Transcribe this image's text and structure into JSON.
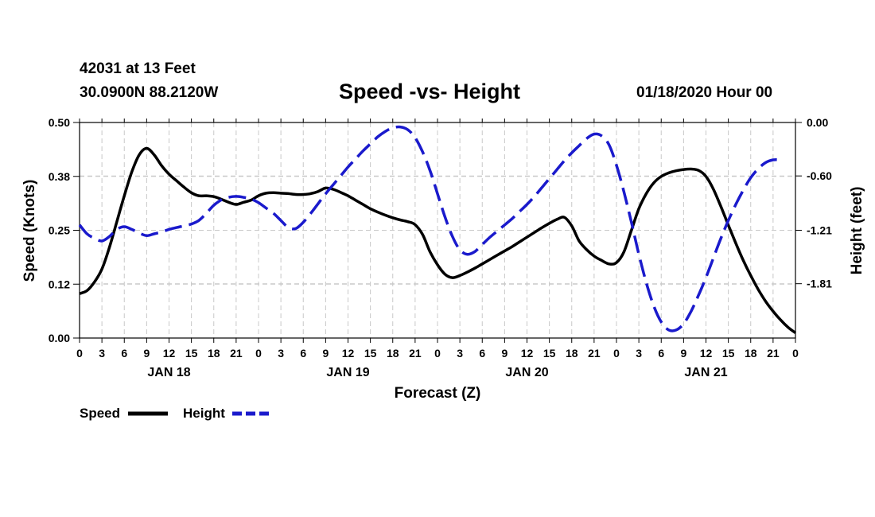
{
  "header": {
    "station": "42031 at 13 Feet",
    "coords": "30.0900N 88.2120W",
    "title": "Speed -vs- Height",
    "datetime": "01/18/2020 Hour 00"
  },
  "colors": {
    "speed": "#000000",
    "height": "#1a1acc",
    "grid": "#c8c8c8"
  },
  "chart_data": {
    "type": "line",
    "title": "Speed -vs- Height",
    "xlabel": "Forecast (Z)",
    "ylabel": "Speed (Knots)",
    "ylabel_right": "Height (feet)",
    "x_hours_range": [
      0,
      96
    ],
    "x_tick_labels": [
      "0",
      "3",
      "6",
      "9",
      "12",
      "15",
      "18",
      "21",
      "0",
      "3",
      "6",
      "9",
      "12",
      "15",
      "18",
      "21",
      "0",
      "3",
      "6",
      "9",
      "12",
      "15",
      "18",
      "21",
      "0",
      "3",
      "6",
      "9",
      "12",
      "15",
      "18",
      "21",
      "0"
    ],
    "day_labels": [
      {
        "label": "JAN 18",
        "hour": 12
      },
      {
        "label": "JAN 19",
        "hour": 36
      },
      {
        "label": "JAN 20",
        "hour": 60
      },
      {
        "label": "JAN 21",
        "hour": 84
      }
    ],
    "ylim": [
      0,
      0.5
    ],
    "y_tick_labels": [
      "0.00",
      "0.12",
      "0.25",
      "0.38",
      "0.50"
    ],
    "y2lim": [
      -2.42,
      0.0
    ],
    "y2_tick_labels": [
      "0.00",
      "-0.60",
      "-1.21",
      "-1.81"
    ],
    "legend": {
      "position": "bottom-left",
      "speed_label": "Speed",
      "height_label": "Height"
    },
    "series": [
      {
        "name": "Speed",
        "axis": "left",
        "style": "solid",
        "x": [
          0,
          1,
          2,
          3,
          4,
          5,
          6,
          7,
          8,
          9,
          10,
          11,
          12,
          13,
          14,
          15,
          16,
          17,
          18,
          19,
          20,
          21,
          22,
          23,
          24,
          25,
          26,
          27,
          28,
          29,
          30,
          31,
          32,
          33,
          34,
          35,
          36,
          37,
          38,
          39,
          40,
          41,
          42,
          43,
          44,
          45,
          46,
          47,
          48,
          49,
          50,
          51,
          52,
          53,
          54,
          55,
          56,
          57,
          58,
          59,
          60,
          61,
          62,
          63,
          64,
          65,
          66,
          67,
          68,
          69,
          70,
          71,
          72,
          73,
          74,
          75,
          76,
          77,
          78,
          79,
          80,
          81,
          82,
          83,
          84,
          85,
          86,
          87,
          88,
          89,
          90,
          91,
          92,
          93,
          94,
          95,
          96
        ],
        "values": [
          0.103,
          0.11,
          0.13,
          0.16,
          0.21,
          0.27,
          0.33,
          0.385,
          0.425,
          0.44,
          0.425,
          0.4,
          0.38,
          0.365,
          0.35,
          0.337,
          0.33,
          0.33,
          0.328,
          0.322,
          0.315,
          0.31,
          0.315,
          0.32,
          0.33,
          0.336,
          0.337,
          0.336,
          0.335,
          0.333,
          0.333,
          0.335,
          0.34,
          0.348,
          0.345,
          0.338,
          0.33,
          0.32,
          0.31,
          0.3,
          0.292,
          0.285,
          0.279,
          0.274,
          0.27,
          0.263,
          0.24,
          0.2,
          0.17,
          0.148,
          0.14,
          0.145,
          0.153,
          0.162,
          0.172,
          0.182,
          0.192,
          0.202,
          0.212,
          0.223,
          0.234,
          0.245,
          0.256,
          0.266,
          0.275,
          0.28,
          0.26,
          0.225,
          0.205,
          0.19,
          0.18,
          0.172,
          0.175,
          0.2,
          0.25,
          0.3,
          0.335,
          0.36,
          0.375,
          0.383,
          0.388,
          0.391,
          0.392,
          0.389,
          0.375,
          0.345,
          0.305,
          0.262,
          0.22,
          0.18,
          0.145,
          0.113,
          0.085,
          0.062,
          0.042,
          0.025,
          0.012
        ]
      },
      {
        "name": "Height",
        "axis": "right",
        "style": "dashed",
        "x": [
          0,
          1,
          2,
          3,
          4,
          5,
          6,
          7,
          8,
          9,
          10,
          11,
          12,
          13,
          14,
          15,
          16,
          17,
          18,
          19,
          20,
          21,
          22,
          23,
          24,
          25,
          26,
          27,
          28,
          29,
          30,
          31,
          32,
          33,
          34,
          35,
          36,
          37,
          38,
          39,
          40,
          41,
          42,
          43,
          44,
          45,
          46,
          47,
          48,
          49,
          50,
          51,
          52,
          53,
          54,
          55,
          56,
          57,
          58,
          59,
          60,
          61,
          62,
          63,
          64,
          65,
          66,
          67,
          68,
          69,
          70,
          71,
          72,
          73,
          74,
          75,
          76,
          77,
          78,
          79,
          80,
          81,
          82,
          83,
          84,
          85,
          86,
          87,
          88,
          89,
          90,
          91,
          92,
          93,
          94,
          95,
          96
        ],
        "values": [
          -1.15,
          -1.25,
          -1.3,
          -1.33,
          -1.28,
          -1.2,
          -1.17,
          -1.2,
          -1.24,
          -1.27,
          -1.25,
          -1.23,
          -1.2,
          -1.18,
          -1.16,
          -1.14,
          -1.1,
          -1.02,
          -0.93,
          -0.87,
          -0.84,
          -0.83,
          -0.84,
          -0.86,
          -0.9,
          -0.96,
          -1.02,
          -1.1,
          -1.18,
          -1.19,
          -1.12,
          -1.02,
          -0.91,
          -0.8,
          -0.7,
          -0.6,
          -0.5,
          -0.41,
          -0.32,
          -0.24,
          -0.16,
          -0.1,
          -0.06,
          -0.05,
          -0.08,
          -0.17,
          -0.33,
          -0.54,
          -0.8,
          -1.06,
          -1.28,
          -1.43,
          -1.48,
          -1.45,
          -1.37,
          -1.29,
          -1.22,
          -1.15,
          -1.08,
          -1.0,
          -0.92,
          -0.83,
          -0.73,
          -0.63,
          -0.53,
          -0.43,
          -0.34,
          -0.26,
          -0.18,
          -0.13,
          -0.15,
          -0.25,
          -0.48,
          -0.78,
          -1.12,
          -1.48,
          -1.8,
          -2.06,
          -2.24,
          -2.33,
          -2.33,
          -2.26,
          -2.12,
          -1.94,
          -1.74,
          -1.52,
          -1.3,
          -1.1,
          -0.92,
          -0.76,
          -0.62,
          -0.52,
          -0.45,
          -0.42,
          -0.42,
          null,
          null
        ]
      }
    ]
  }
}
